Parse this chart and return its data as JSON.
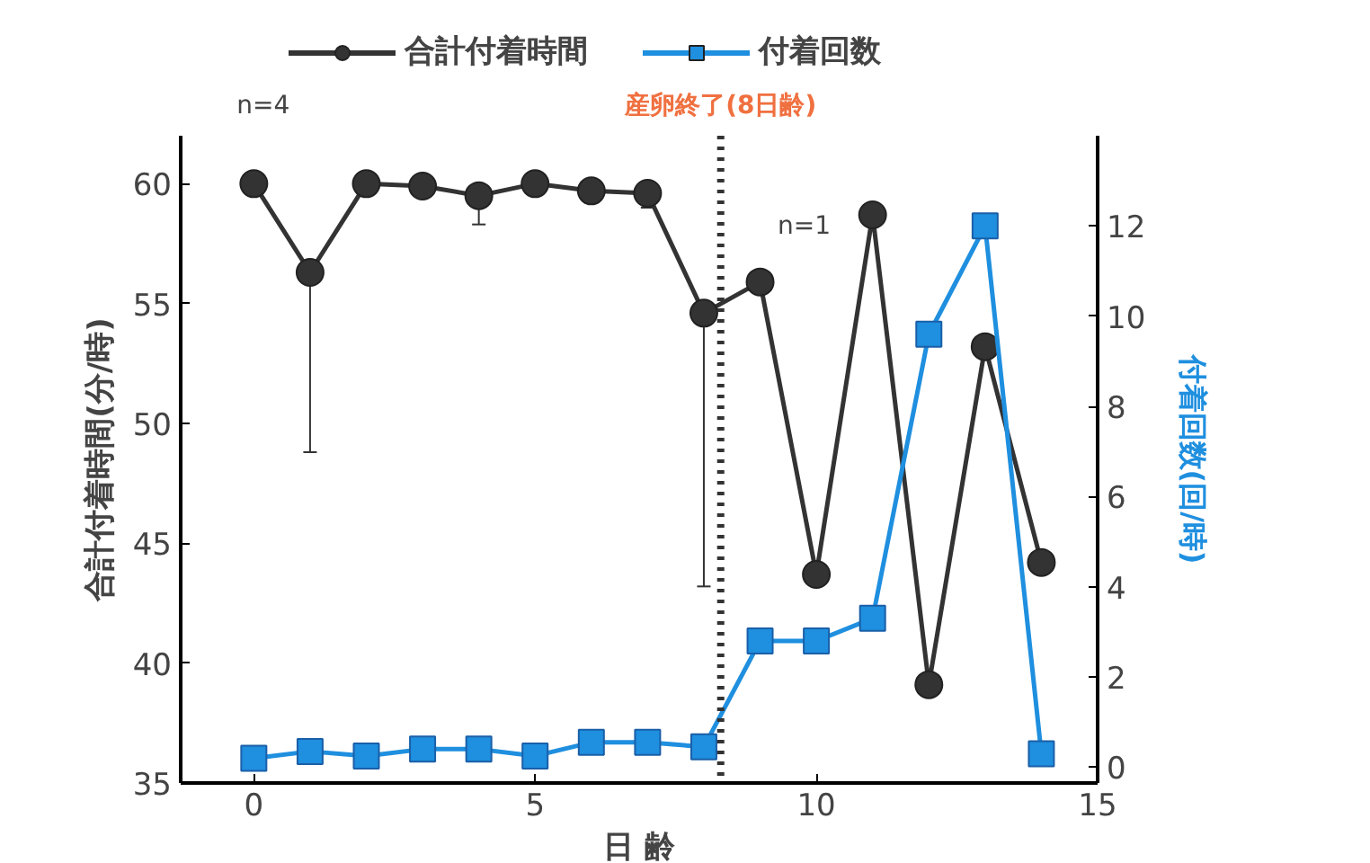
{
  "chart_data": {
    "type": "line",
    "xlabel": "日 齢",
    "ylabel": "合計付着時間(分/時)",
    "y2label": "付着回数(回/時)",
    "x": [
      0,
      1,
      2,
      3,
      4,
      5,
      6,
      7,
      8,
      9,
      10,
      11,
      12,
      13,
      14
    ],
    "series": [
      {
        "name": "合計付着時間",
        "color": "#333333",
        "marker": "circle",
        "values": [
          60.0,
          56.3,
          60.0,
          59.9,
          59.5,
          60.0,
          59.7,
          59.6,
          54.6,
          55.9,
          43.7,
          58.7,
          39.1,
          53.2,
          44.2
        ],
        "errors": [
          null,
          [
            48.8,
            56.3
          ],
          null,
          null,
          [
            58.3,
            59.5
          ],
          null,
          [
            59.2,
            59.7
          ],
          [
            59.0,
            59.6
          ],
          [
            43.2,
            54.6
          ],
          null,
          null,
          null,
          null,
          null,
          null
        ]
      },
      {
        "name": "付着回数",
        "color": "#1f8fdf",
        "marker": "square",
        "axis": "y2",
        "values": [
          0.2,
          0.35,
          0.25,
          0.4,
          0.4,
          0.25,
          0.55,
          0.55,
          0.45,
          2.8,
          2.8,
          3.3,
          9.6,
          12.0,
          0.3
        ],
        "errors": [
          null,
          null,
          null,
          null,
          null,
          null,
          null,
          [
            0.55,
            0.8
          ],
          null,
          null,
          null,
          null,
          null,
          null,
          null
        ]
      }
    ],
    "xlim": [
      -1.3,
      15
    ],
    "xticks": [
      0,
      5,
      10,
      15
    ],
    "ylim": [
      35,
      62
    ],
    "yticks": [
      35,
      40,
      45,
      50,
      55,
      60
    ],
    "y2lim": [
      -0.35,
      14.0
    ],
    "y2ticks": [
      0,
      2,
      4,
      6,
      8,
      10,
      12
    ],
    "ref_lines": [
      {
        "axis": "x",
        "value": 8.3,
        "label": "産卵終了(8日齢)",
        "color": "#333333",
        "line_style": "dotted"
      }
    ],
    "annotations": [
      "n=4",
      "n=1"
    ],
    "legend": "top",
    "grid": false,
    "line_style": "solid"
  }
}
